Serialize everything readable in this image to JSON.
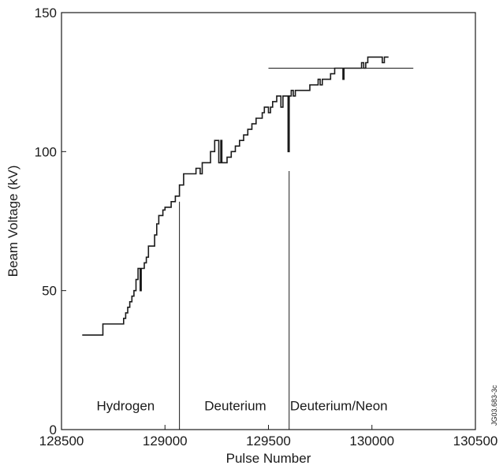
{
  "chart_data": {
    "type": "line",
    "title": "",
    "xlabel": "Pulse Number",
    "ylabel": "Beam Voltage (kV)",
    "xlim": [
      128500,
      130500
    ],
    "ylim": [
      0,
      150
    ],
    "xticks": [
      128500,
      129000,
      129500,
      130000,
      130500
    ],
    "yticks": [
      0,
      50,
      100,
      150
    ],
    "grid": false,
    "series": [
      {
        "values_xy": [
          [
            128600,
            34
          ],
          [
            128700,
            34
          ],
          [
            128700,
            38
          ],
          [
            128800,
            38
          ],
          [
            128800,
            40
          ],
          [
            128810,
            40
          ],
          [
            128810,
            42
          ],
          [
            128820,
            42
          ],
          [
            128820,
            44
          ],
          [
            128830,
            44
          ],
          [
            128830,
            46
          ],
          [
            128840,
            46
          ],
          [
            128840,
            48
          ],
          [
            128850,
            48
          ],
          [
            128850,
            50
          ],
          [
            128860,
            50
          ],
          [
            128860,
            54
          ],
          [
            128870,
            54
          ],
          [
            128870,
            58
          ],
          [
            128880,
            58
          ],
          [
            128880,
            50
          ],
          [
            128885,
            50
          ],
          [
            128885,
            58
          ],
          [
            128900,
            58
          ],
          [
            128900,
            60
          ],
          [
            128910,
            60
          ],
          [
            128910,
            62
          ],
          [
            128920,
            62
          ],
          [
            128920,
            66
          ],
          [
            128950,
            66
          ],
          [
            128950,
            70
          ],
          [
            128960,
            70
          ],
          [
            128960,
            74
          ],
          [
            128970,
            74
          ],
          [
            128970,
            77
          ],
          [
            128990,
            77
          ],
          [
            128990,
            79
          ],
          [
            129000,
            79
          ],
          [
            129000,
            80
          ],
          [
            129030,
            80
          ],
          [
            129030,
            82
          ],
          [
            129050,
            82
          ],
          [
            129050,
            84
          ],
          [
            129070,
            84
          ],
          [
            129070,
            88
          ],
          [
            129090,
            88
          ],
          [
            129090,
            92
          ],
          [
            129150,
            92
          ],
          [
            129150,
            94
          ],
          [
            129170,
            94
          ],
          [
            129170,
            92
          ],
          [
            129180,
            92
          ],
          [
            129180,
            96
          ],
          [
            129220,
            96
          ],
          [
            129220,
            100
          ],
          [
            129240,
            100
          ],
          [
            129240,
            104
          ],
          [
            129260,
            104
          ],
          [
            129260,
            96
          ],
          [
            129270,
            96
          ],
          [
            129270,
            104
          ],
          [
            129275,
            104
          ],
          [
            129275,
            96
          ],
          [
            129300,
            96
          ],
          [
            129300,
            98
          ],
          [
            129320,
            98
          ],
          [
            129320,
            100
          ],
          [
            129340,
            100
          ],
          [
            129340,
            102
          ],
          [
            129360,
            102
          ],
          [
            129360,
            104
          ],
          [
            129380,
            104
          ],
          [
            129380,
            106
          ],
          [
            129400,
            106
          ],
          [
            129400,
            108
          ],
          [
            129420,
            108
          ],
          [
            129420,
            110
          ],
          [
            129440,
            110
          ],
          [
            129440,
            112
          ],
          [
            129470,
            112
          ],
          [
            129470,
            114
          ],
          [
            129480,
            114
          ],
          [
            129480,
            116
          ],
          [
            129500,
            116
          ],
          [
            129500,
            114
          ],
          [
            129510,
            114
          ],
          [
            129510,
            116
          ],
          [
            129520,
            116
          ],
          [
            129520,
            118
          ],
          [
            129540,
            118
          ],
          [
            129540,
            120
          ],
          [
            129560,
            120
          ],
          [
            129560,
            116
          ],
          [
            129570,
            116
          ],
          [
            129570,
            120
          ],
          [
            129595,
            120
          ],
          [
            129595,
            100
          ],
          [
            129600,
            100
          ],
          [
            129600,
            120
          ],
          [
            129610,
            120
          ],
          [
            129610,
            122
          ],
          [
            129620,
            122
          ],
          [
            129620,
            120
          ],
          [
            129630,
            120
          ],
          [
            129630,
            122
          ],
          [
            129700,
            122
          ],
          [
            129700,
            124
          ],
          [
            129740,
            124
          ],
          [
            129740,
            126
          ],
          [
            129750,
            126
          ],
          [
            129750,
            124
          ],
          [
            129760,
            124
          ],
          [
            129760,
            126
          ],
          [
            129800,
            126
          ],
          [
            129800,
            128
          ],
          [
            129820,
            128
          ],
          [
            129820,
            130
          ],
          [
            129860,
            130
          ],
          [
            129860,
            126
          ],
          [
            129865,
            126
          ],
          [
            129865,
            130
          ],
          [
            129950,
            130
          ],
          [
            129950,
            132
          ],
          [
            129960,
            132
          ],
          [
            129960,
            130
          ],
          [
            129970,
            130
          ],
          [
            129970,
            132
          ],
          [
            129980,
            132
          ],
          [
            129980,
            134
          ],
          [
            130050,
            134
          ],
          [
            130050,
            132
          ],
          [
            130060,
            132
          ],
          [
            130060,
            134
          ],
          [
            130080,
            134
          ]
        ]
      }
    ],
    "reference_line": {
      "y": 130,
      "x": [
        129500,
        130200
      ]
    },
    "dividers": [
      {
        "x": 129070,
        "y": [
          0,
          82
        ]
      },
      {
        "x": 129600,
        "y": [
          0,
          93
        ]
      }
    ],
    "regions": [
      {
        "label": "Hydrogen",
        "x": 128810
      },
      {
        "label": "Deuterium",
        "x": 129340
      },
      {
        "label": "Deuterium/Neon",
        "x": 129840
      }
    ],
    "stamp": "JG03.683-3c"
  }
}
